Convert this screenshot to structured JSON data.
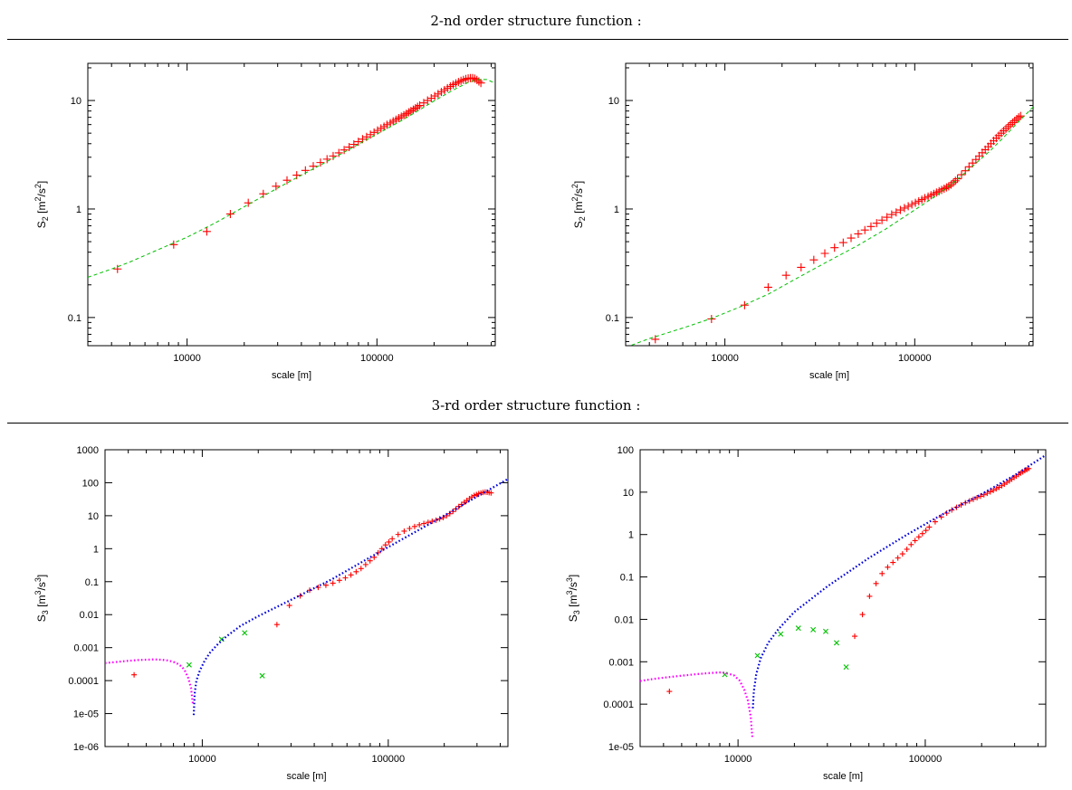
{
  "sections": [
    {
      "title": "2-nd order structure function :"
    },
    {
      "title": "3-rd order structure function :"
    }
  ],
  "chart_data": [
    {
      "id": "s2-left",
      "type": "scatter",
      "title": "",
      "xlabel": "scale [m]",
      "ylabel_main": "S",
      "ylabel_sub": "2",
      "ylabel_open": " [m",
      "ylabel_sup1": "2",
      "ylabel_mid": "/s",
      "ylabel_sup2": "2",
      "ylabel_close": "]",
      "xscale": "log",
      "yscale": "log",
      "xlim": [
        3000,
        420000
      ],
      "ylim": [
        0.055,
        22
      ],
      "xticks": [
        10000,
        100000
      ],
      "xticklabels": [
        "10000",
        "100000"
      ],
      "yticks": [
        0.1,
        1,
        10
      ],
      "yticklabels": [
        "0.1",
        "1",
        "10"
      ],
      "series": [
        {
          "marker": "plus",
          "color": "#ff0000",
          "x": [
            4300,
            8500,
            12700,
            16900,
            21000,
            25200,
            29400,
            33600,
            37800,
            42000,
            46200,
            50400,
            54600,
            58800,
            63000,
            67200,
            71400,
            75600,
            79800,
            84000,
            88200,
            92400,
            96600,
            100800,
            105000,
            109000,
            113000,
            117600,
            121800,
            126000,
            130200,
            134400,
            138600,
            142800,
            147000,
            151000,
            155400,
            159600,
            163800,
            168000,
            176400,
            184800,
            193200,
            201600,
            210000,
            218400,
            226800,
            235200,
            243600,
            252000,
            260400,
            268800,
            277200,
            285600,
            294000,
            302400,
            310800,
            319200,
            327600,
            336000,
            344400,
            352800
          ],
          "y": [
            0.28,
            0.47,
            0.62,
            0.9,
            1.14,
            1.38,
            1.62,
            1.84,
            2.05,
            2.27,
            2.48,
            2.68,
            2.88,
            3.08,
            3.29,
            3.5,
            3.72,
            3.94,
            4.17,
            4.4,
            4.62,
            4.85,
            5.08,
            5.3,
            5.53,
            5.75,
            5.98,
            6.2,
            6.43,
            6.66,
            6.88,
            7.1,
            7.33,
            7.55,
            7.78,
            8.0,
            8.25,
            8.5,
            8.75,
            9.0,
            9.5,
            10.0,
            10.5,
            11.0,
            11.5,
            12.0,
            12.5,
            13.0,
            13.5,
            14.0,
            14.4,
            14.8,
            15.2,
            15.5,
            15.8,
            16.0,
            16.1,
            16.1,
            15.9,
            15.5,
            15.0,
            14.5
          ]
        },
        {
          "style": "dashed",
          "color": "#00c000",
          "x": [
            3000,
            4000,
            5000,
            7000,
            10000,
            14000,
            20000,
            30000,
            40000,
            60000,
            80000,
            100000,
            130000,
            160000,
            200000,
            250000,
            300000,
            340000,
            380000,
            420000
          ],
          "y": [
            0.235,
            0.28,
            0.325,
            0.42,
            0.55,
            0.74,
            1.05,
            1.56,
            2.05,
            3.0,
            3.95,
            4.9,
            6.3,
            7.8,
            9.9,
            12.4,
            14.6,
            15.6,
            15.6,
            14.4
          ]
        }
      ]
    },
    {
      "id": "s2-right",
      "type": "scatter",
      "title": "",
      "xlabel": "scale [m]",
      "ylabel_main": "S",
      "ylabel_sub": "2",
      "ylabel_open": " [m",
      "ylabel_sup1": "2",
      "ylabel_mid": "/s",
      "ylabel_sup2": "2",
      "ylabel_close": "]",
      "xscale": "log",
      "yscale": "log",
      "xlim": [
        3000,
        420000
      ],
      "ylim": [
        0.055,
        22
      ],
      "xticks": [
        10000,
        100000
      ],
      "xticklabels": [
        "10000",
        "100000"
      ],
      "yticks": [
        0.1,
        1,
        10
      ],
      "yticklabels": [
        "0.1",
        "1",
        "10"
      ],
      "series": [
        {
          "marker": "plus",
          "color": "#ff0000",
          "x": [
            4300,
            8500,
            12700,
            16900,
            21000,
            25200,
            29400,
            33600,
            37800,
            42000,
            46200,
            50400,
            54600,
            58800,
            63000,
            67200,
            71400,
            75600,
            79800,
            84000,
            88200,
            92400,
            96600,
            100800,
            105000,
            109000,
            113000,
            117600,
            121800,
            126000,
            130200,
            134400,
            138600,
            142800,
            147000,
            151000,
            155400,
            159600,
            163800,
            168000,
            176400,
            184800,
            193200,
            201600,
            210000,
            218400,
            226800,
            235200,
            243600,
            252000,
            260400,
            268800,
            277200,
            285600,
            294000,
            302400,
            310800,
            319200,
            327600,
            336000,
            344400,
            352800,
            361200
          ],
          "y": [
            0.063,
            0.097,
            0.13,
            0.19,
            0.245,
            0.29,
            0.34,
            0.39,
            0.44,
            0.49,
            0.54,
            0.59,
            0.64,
            0.69,
            0.74,
            0.79,
            0.84,
            0.89,
            0.93,
            0.98,
            1.02,
            1.06,
            1.1,
            1.14,
            1.18,
            1.22,
            1.26,
            1.3,
            1.34,
            1.38,
            1.42,
            1.46,
            1.5,
            1.54,
            1.58,
            1.62,
            1.68,
            1.75,
            1.82,
            1.9,
            2.07,
            2.25,
            2.45,
            2.65,
            2.86,
            3.08,
            3.3,
            3.52,
            3.75,
            4.0,
            4.25,
            4.5,
            4.75,
            5.0,
            5.25,
            5.5,
            5.75,
            6.0,
            6.25,
            6.5,
            6.75,
            7.0,
            7.2
          ]
        },
        {
          "style": "dashed",
          "color": "#00c000",
          "x": [
            3000,
            4000,
            6000,
            8500,
            12000,
            17000,
            25000,
            35000,
            50000,
            70000,
            100000,
            130000,
            160000,
            200000,
            250000,
            300000,
            350000,
            420000
          ],
          "y": [
            0.053,
            0.064,
            0.08,
            0.098,
            0.125,
            0.165,
            0.24,
            0.33,
            0.46,
            0.65,
            0.98,
            1.33,
            1.75,
            2.45,
            3.45,
            4.75,
            6.3,
            8.7
          ]
        }
      ]
    },
    {
      "id": "s3-left",
      "type": "scatter",
      "title": "",
      "xlabel": "scale [m]",
      "ylabel_main": "S",
      "ylabel_sub": "3",
      "ylabel_open": " [m",
      "ylabel_sup1": "3",
      "ylabel_mid": "/s",
      "ylabel_sup2": "3",
      "ylabel_close": "]",
      "xscale": "log",
      "yscale": "log",
      "xlim": [
        3000,
        440000
      ],
      "ylim": [
        1e-06,
        1000
      ],
      "xticks": [
        10000,
        100000
      ],
      "xticklabels": [
        "10000",
        "100000"
      ],
      "yticks": [
        1e-06,
        1e-05,
        0.0001,
        0.001,
        0.01,
        0.1,
        1,
        10,
        100,
        1000
      ],
      "yticklabels": [
        "1e-06",
        "1e-05",
        "0.0001",
        "0.001",
        "0.01",
        "0.1",
        "1",
        "10",
        "100",
        "1000"
      ],
      "series": [
        {
          "marker": "plus",
          "color": "#ff0000",
          "x": [
            4300,
            25200,
            29400,
            33600,
            37800,
            42000,
            46200,
            50400,
            54600,
            58800,
            63000,
            67200,
            71400,
            75600,
            79800,
            84000,
            88200,
            92400,
            96600,
            100800,
            105000,
            113000,
            121800,
            130200,
            138600,
            147000,
            155400,
            163800,
            172200,
            180600,
            189000,
            197400,
            205800,
            214200,
            222600,
            231000,
            239400,
            247800,
            256200,
            264600,
            273000,
            281400,
            289800,
            298200,
            306600,
            315000,
            323400,
            331800,
            340200,
            348600,
            357000
          ],
          "y": [
            0.00015,
            0.005,
            0.019,
            0.037,
            0.055,
            0.067,
            0.078,
            0.09,
            0.11,
            0.13,
            0.16,
            0.2,
            0.25,
            0.33,
            0.43,
            0.55,
            0.75,
            1.0,
            1.3,
            1.6,
            2.0,
            2.7,
            3.4,
            4.1,
            4.7,
            5.3,
            5.8,
            6.3,
            6.8,
            7.3,
            8.0,
            8.8,
            10.0,
            11.5,
            13.5,
            16.0,
            19.0,
            22.0,
            25.5,
            29.0,
            33.0,
            37.0,
            41.0,
            44.0,
            47.0,
            49.0,
            51.0,
            52.0,
            51.5,
            50.0,
            49.0
          ]
        },
        {
          "marker": "cross",
          "color": "#00c000",
          "x": [
            8500,
            12700,
            16900,
            21000
          ],
          "y": [
            0.0003,
            0.0018,
            0.0028,
            0.00014
          ]
        },
        {
          "style": "dotted",
          "color": "#ff00ff",
          "x": [
            3000,
            3500,
            4000,
            4500,
            5000,
            5500,
            6000,
            6500,
            7000,
            7400,
            7800,
            8100,
            8400,
            8700,
            8900
          ],
          "y": [
            0.00034,
            0.00037,
            0.0004,
            0.00042,
            0.00043,
            0.00044,
            0.00043,
            0.00041,
            0.00037,
            0.00032,
            0.00026,
            0.00019,
            0.00012,
            6e-05,
            2e-05
          ]
        },
        {
          "style": "dotted",
          "color": "#0000e0",
          "x": [
            9000,
            9100,
            9300,
            9700,
            10300,
            11000,
            12000,
            13500,
            16000,
            20000,
            30000,
            50000,
            80000,
            120000,
            200000,
            300000,
            440000
          ],
          "y": [
            9e-06,
            4e-05,
            0.0001,
            0.0002,
            0.0004,
            0.0007,
            0.0012,
            0.0022,
            0.0045,
            0.009,
            0.028,
            0.12,
            0.55,
            2.0,
            10.0,
            38.0,
            130.0
          ]
        }
      ]
    },
    {
      "id": "s3-right",
      "type": "scatter",
      "title": "",
      "xlabel": "scale [m]",
      "ylabel_main": "S",
      "ylabel_sub": "3",
      "ylabel_open": " [m",
      "ylabel_sup1": "3",
      "ylabel_mid": "/s",
      "ylabel_sup2": "3",
      "ylabel_close": "]",
      "xscale": "log",
      "yscale": "log",
      "xlim": [
        3000,
        440000
      ],
      "ylim": [
        1e-05,
        100
      ],
      "xticks": [
        10000,
        100000
      ],
      "xticklabels": [
        "10000",
        "100000"
      ],
      "yticks": [
        1e-05,
        0.0001,
        0.001,
        0.01,
        0.1,
        1,
        10,
        100
      ],
      "yticklabels": [
        "1e-05",
        "0.0001",
        "0.001",
        "0.01",
        "0.1",
        "1",
        "10",
        "100"
      ],
      "series": [
        {
          "marker": "plus",
          "color": "#ff0000",
          "x": [
            4300,
            42000,
            46200,
            50400,
            54600,
            58800,
            63000,
            67200,
            71400,
            75600,
            79800,
            84000,
            88200,
            92400,
            96600,
            100800,
            105000,
            113000,
            121800,
            130200,
            138600,
            147000,
            155400,
            163800,
            172200,
            180600,
            189000,
            197400,
            205800,
            214200,
            222600,
            231000,
            239400,
            247800,
            256200,
            264600,
            273000,
            281400,
            289800,
            298200,
            306600,
            315000,
            323400,
            331800,
            340200,
            348600,
            357000
          ],
          "y": [
            0.0002,
            0.004,
            0.013,
            0.035,
            0.07,
            0.12,
            0.17,
            0.22,
            0.28,
            0.35,
            0.45,
            0.58,
            0.72,
            0.88,
            1.05,
            1.25,
            1.5,
            2.0,
            2.6,
            3.2,
            3.8,
            4.4,
            5.0,
            5.6,
            6.2,
            6.8,
            7.4,
            8.0,
            8.7,
            9.4,
            10.2,
            11.0,
            12.0,
            13.0,
            14.2,
            15.5,
            17.0,
            18.5,
            20.2,
            22.0,
            24.0,
            26.0,
            28.0,
            30.0,
            32.0,
            34.0,
            36.0
          ]
        },
        {
          "marker": "cross",
          "color": "#00c000",
          "x": [
            8500,
            12700,
            16900,
            21000,
            25200,
            29400,
            33600,
            37800
          ],
          "y": [
            0.0005,
            0.0014,
            0.0045,
            0.0062,
            0.0057,
            0.0052,
            0.0028,
            0.00075
          ]
        },
        {
          "style": "dotted",
          "color": "#ff00ff",
          "x": [
            3000,
            3500,
            4000,
            5000,
            6000,
            7000,
            8000,
            8500,
            9500,
            10200,
            10800,
            11300,
            11700,
            11950
          ],
          "y": [
            0.00035,
            0.00039,
            0.00042,
            0.00047,
            0.00051,
            0.00054,
            0.00056,
            0.00055,
            0.00048,
            0.00036,
            0.00022,
            0.00012,
            5e-05,
            1.5e-05
          ]
        },
        {
          "style": "dotted",
          "color": "#0000e0",
          "x": [
            12000,
            12150,
            12500,
            13200,
            14500,
            16500,
            20000,
            30000,
            50000,
            80000,
            120000,
            200000,
            300000,
            440000
          ],
          "y": [
            8e-05,
            0.0002,
            0.0005,
            0.0012,
            0.0028,
            0.006,
            0.015,
            0.06,
            0.28,
            1.0,
            2.8,
            9.0,
            25.0,
            75.0
          ]
        }
      ]
    }
  ]
}
